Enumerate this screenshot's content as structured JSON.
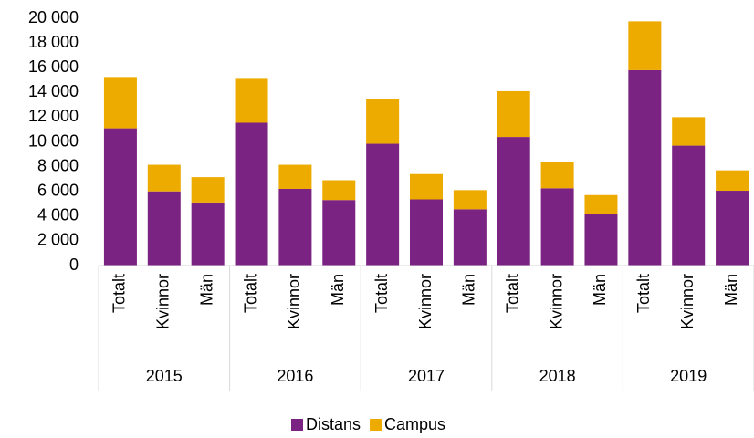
{
  "chart_data": {
    "type": "bar",
    "stacked": true,
    "categories": [
      "Totalt",
      "Kvinnor",
      "Män",
      "Totalt",
      "Kvinnor",
      "Män",
      "Totalt",
      "Kvinnor",
      "Män",
      "Totalt",
      "Kvinnor",
      "Män",
      "Totalt",
      "Kvinnor",
      "Män"
    ],
    "groups": [
      "2015",
      "2016",
      "2017",
      "2018",
      "2019"
    ],
    "series": [
      {
        "name": "Distans",
        "color": "#7b2382",
        "values": [
          11100,
          6000,
          5100,
          11550,
          6200,
          5300,
          9850,
          5350,
          4550,
          10400,
          6250,
          4150,
          15800,
          9700,
          6050
        ]
      },
      {
        "name": "Campus",
        "color": "#edab00",
        "values": [
          4150,
          2150,
          2050,
          3550,
          1950,
          1600,
          3650,
          2050,
          1550,
          3700,
          2150,
          1550,
          3950,
          2300,
          1650
        ]
      }
    ],
    "ylim": [
      0,
      20000
    ],
    "yticks": [
      0,
      {
        "value": 2000,
        "label": "2 000"
      },
      {
        "value": 4000,
        "label": "4 000"
      },
      {
        "value": 6000,
        "label": "6 000"
      },
      {
        "value": 8000,
        "label": "8 000"
      },
      {
        "value": 10000,
        "label": "10 000"
      },
      {
        "value": 12000,
        "label": "12 000"
      },
      {
        "value": 14000,
        "label": "14 000"
      },
      {
        "value": 16000,
        "label": "16 000"
      },
      {
        "value": 18000,
        "label": "18 000"
      },
      {
        "value": 20000,
        "label": "20 000"
      }
    ],
    "legend": "bottom"
  }
}
